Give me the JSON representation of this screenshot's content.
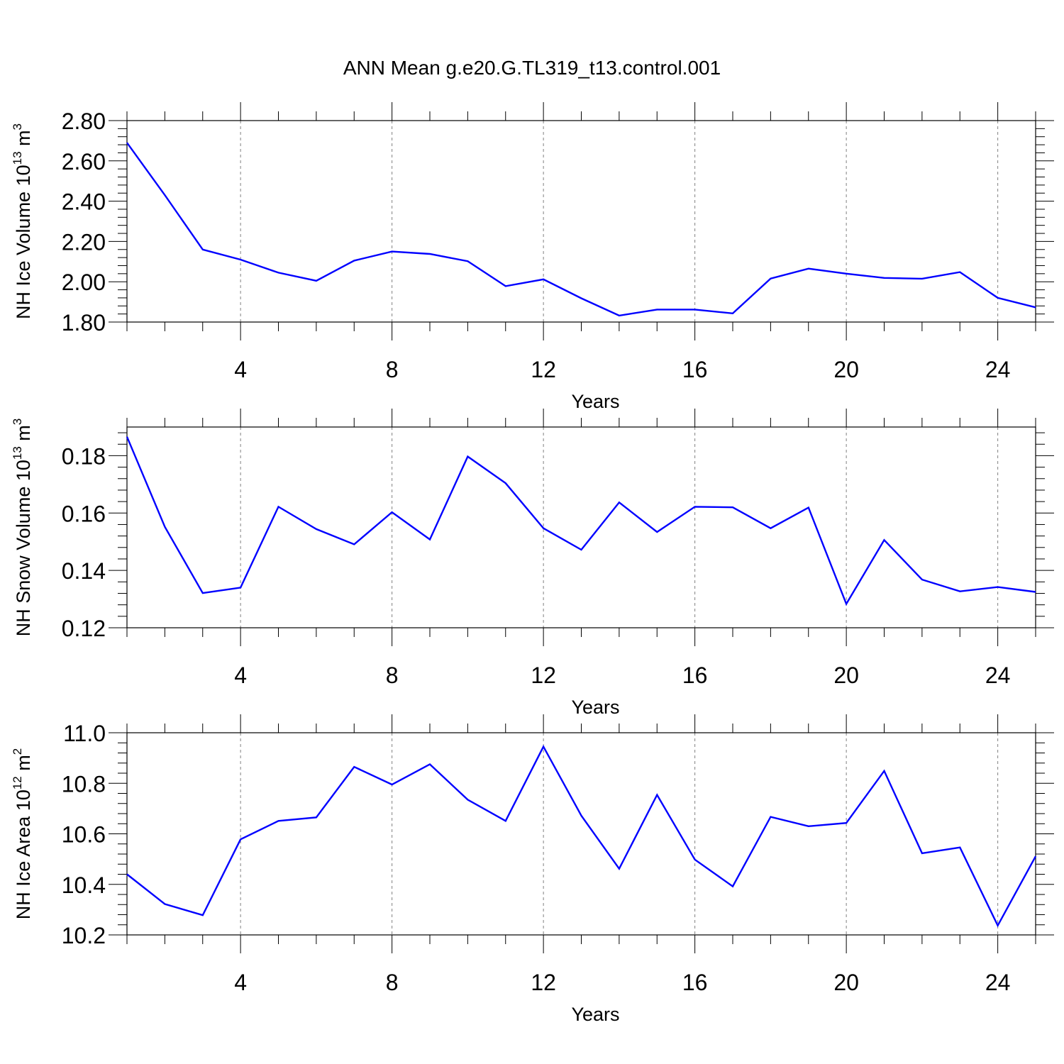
{
  "title": "ANN Mean g.e20.G.TL319_t13.control.001",
  "colors": {
    "line": "#0000ff",
    "axis": "#000000",
    "grid": "#808080"
  },
  "chart_data": [
    {
      "type": "line",
      "ylabel": {
        "prefix": "NH Ice Volume 10",
        "exp": "13",
        "unit": " m",
        "unit_exp": "3"
      },
      "xlabel": "Years",
      "xlim": [
        1,
        25
      ],
      "ylim": [
        1.8,
        2.8
      ],
      "x_ticks": [
        4,
        8,
        12,
        16,
        20,
        24
      ],
      "y_ticks": [
        "1.80",
        "2.00",
        "2.20",
        "2.40",
        "2.60",
        "2.80"
      ],
      "grid": "vertical dashed at major x ticks",
      "series": [
        {
          "x": [
            1,
            2,
            3,
            4,
            5,
            6,
            7,
            8,
            9,
            10,
            11,
            12,
            13,
            14,
            15,
            16,
            17,
            18,
            19,
            20,
            21,
            22,
            23,
            24,
            25
          ],
          "values": [
            2.69,
            2.43,
            2.16,
            2.11,
            2.045,
            2.005,
            2.105,
            2.15,
            2.138,
            2.102,
            1.978,
            2.012,
            1.918,
            1.832,
            1.862,
            1.862,
            1.843,
            2.016,
            2.065,
            2.04,
            2.019,
            2.015,
            2.048,
            1.92,
            1.873
          ]
        }
      ]
    },
    {
      "type": "line",
      "ylabel": {
        "prefix": "NH Snow Volume 10",
        "exp": "13",
        "unit": " m",
        "unit_exp": "3"
      },
      "xlabel": "Years",
      "xlim": [
        1,
        25
      ],
      "ylim": [
        0.12,
        0.19
      ],
      "x_ticks": [
        4,
        8,
        12,
        16,
        20,
        24
      ],
      "y_ticks": [
        "0.12",
        "0.14",
        "0.16",
        "0.18"
      ],
      "grid": "vertical dashed at major x ticks",
      "series": [
        {
          "x": [
            1,
            2,
            3,
            4,
            5,
            6,
            7,
            8,
            9,
            10,
            11,
            12,
            13,
            14,
            15,
            16,
            17,
            18,
            19,
            20,
            21,
            22,
            23,
            24,
            25
          ],
          "values": [
            0.1866,
            0.1552,
            0.1321,
            0.134,
            0.1622,
            0.1544,
            0.1491,
            0.1603,
            0.1508,
            0.1797,
            0.1704,
            0.1547,
            0.1472,
            0.1637,
            0.1534,
            0.1622,
            0.162,
            0.1547,
            0.1619,
            0.1283,
            0.1506,
            0.1368,
            0.1327,
            0.1342,
            0.1325
          ]
        }
      ]
    },
    {
      "type": "line",
      "ylabel": {
        "prefix": "NH Ice Area 10",
        "exp": "12",
        "unit": " m",
        "unit_exp": "2"
      },
      "xlabel": "Years",
      "xlim": [
        1,
        25
      ],
      "ylim": [
        10.2,
        11.0
      ],
      "x_ticks": [
        4,
        8,
        12,
        16,
        20,
        24
      ],
      "y_ticks": [
        "10.2",
        "10.4",
        "10.6",
        "10.8",
        "11.0"
      ],
      "grid": "vertical dashed at major x ticks",
      "series": [
        {
          "x": [
            1,
            2,
            3,
            4,
            5,
            6,
            7,
            8,
            9,
            10,
            11,
            12,
            13,
            14,
            15,
            16,
            17,
            18,
            19,
            20,
            21,
            22,
            23,
            24,
            25
          ],
          "values": [
            10.44,
            10.322,
            10.278,
            10.578,
            10.651,
            10.665,
            10.865,
            10.795,
            10.875,
            10.735,
            10.651,
            10.945,
            10.672,
            10.462,
            10.754,
            10.498,
            10.392,
            10.667,
            10.63,
            10.643,
            10.849,
            10.523,
            10.546,
            10.237,
            10.511
          ]
        }
      ]
    }
  ]
}
